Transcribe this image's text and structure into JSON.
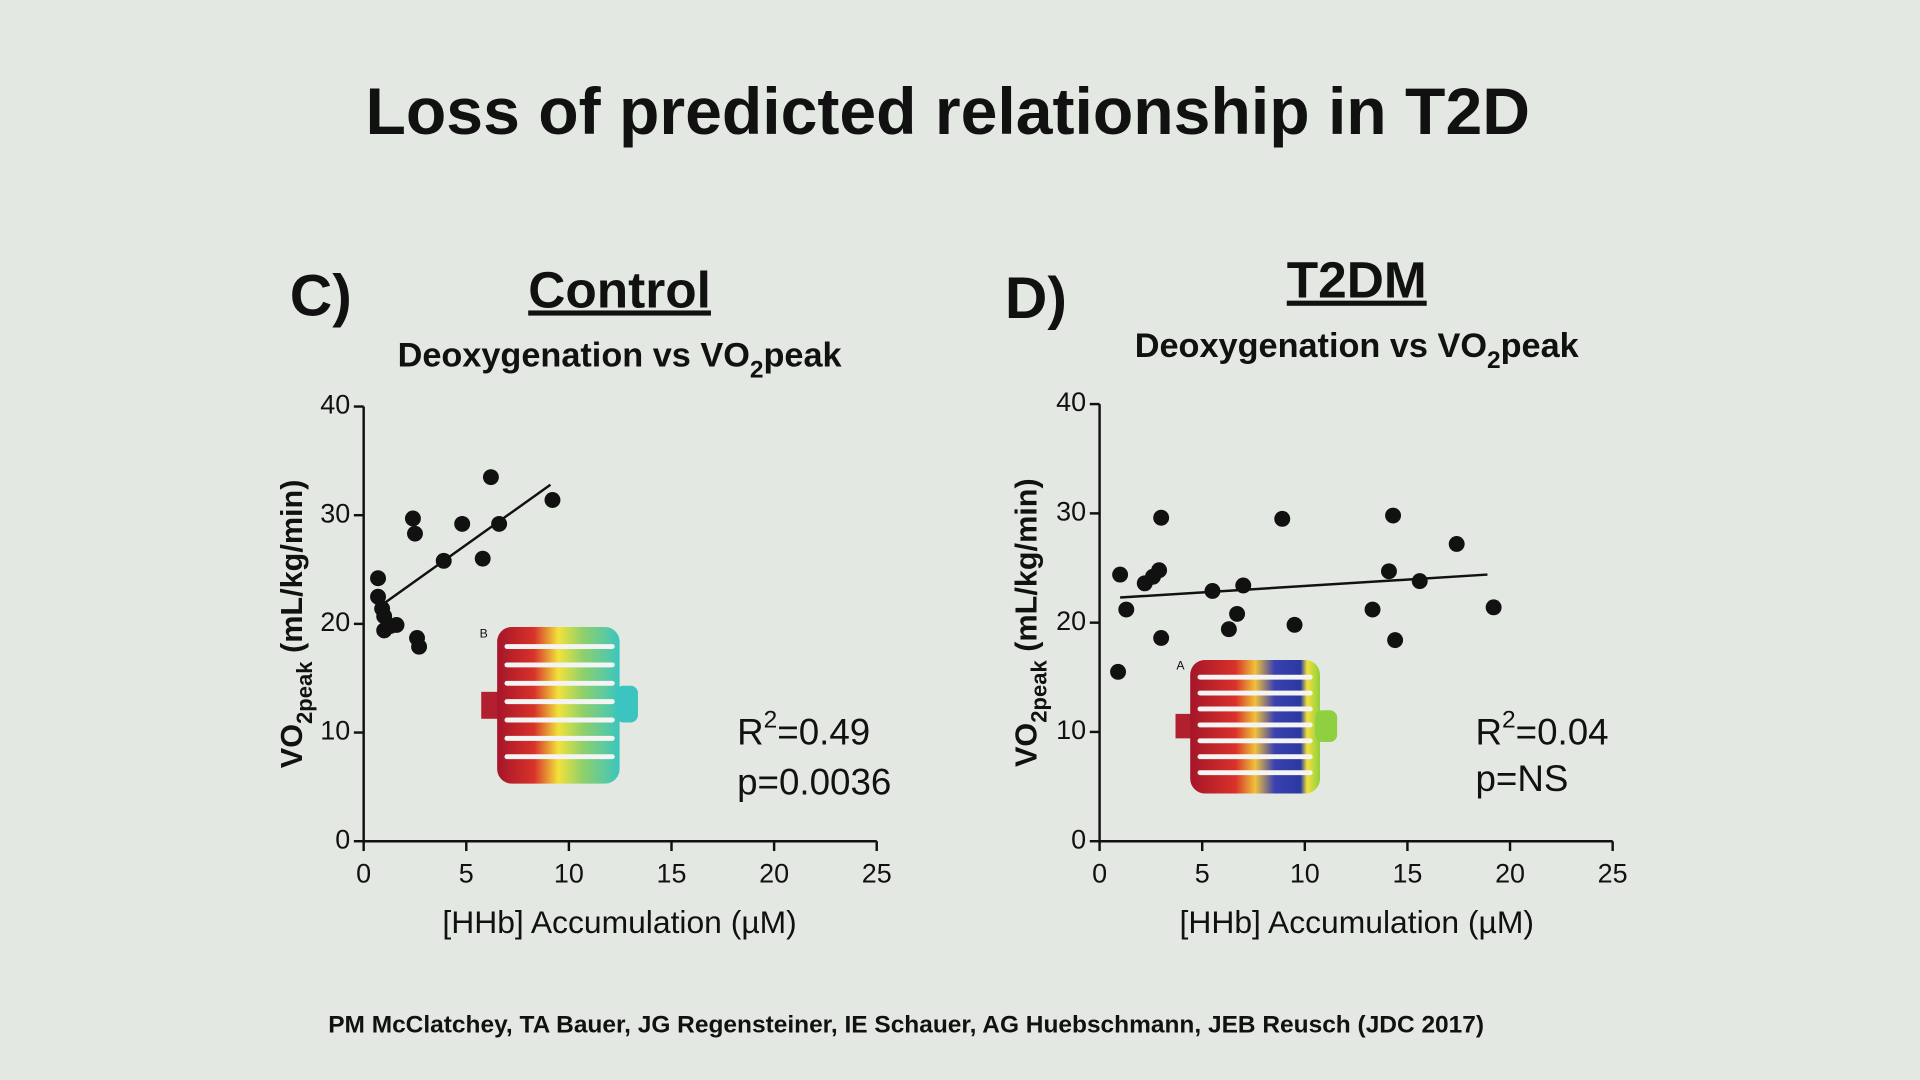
{
  "title": "Loss of predicted relationship in T2D",
  "citation": "PM McClatchey, TA Bauer, JG Regensteiner, IE Schauer, AG Huebschmann, JEB Reusch  (JDC 2017)",
  "chart_data": [
    {
      "type": "scatter",
      "panel": "C)",
      "title": "Control",
      "subtitle": [
        "Deoxygenation vs VO",
        "2",
        "peak"
      ],
      "x_label": "[HHb] Accumulation (µM)",
      "y_label": [
        "VO",
        "2peak",
        " (mL/kg/min)"
      ],
      "annotations": [
        [
          "R",
          "2",
          "=0.49"
        ],
        "p=0.0036"
      ],
      "inset_label": "B",
      "color": "#111111",
      "x": [
        0.7,
        0.7,
        0.9,
        1.0,
        1.0,
        1.3,
        1.6,
        2.4,
        2.5,
        2.6,
        2.7,
        3.9,
        4.8,
        5.8,
        6.2,
        6.6,
        9.2
      ],
      "values": [
        24.2,
        22.5,
        21.4,
        20.7,
        19.4,
        19.8,
        19.9,
        29.7,
        28.3,
        18.7,
        17.9,
        25.8,
        29.2,
        26.0,
        33.5,
        29.2,
        31.4
      ],
      "trendline": {
        "x": [
          1.0,
          9.1
        ],
        "y": [
          21.9,
          32.8
        ]
      },
      "xlim": [
        0,
        25
      ],
      "xticks": [
        0,
        5,
        10,
        15,
        20,
        25
      ],
      "ylim": [
        0,
        40
      ],
      "yticks": [
        0,
        10,
        20,
        30,
        40
      ]
    },
    {
      "type": "scatter",
      "panel": "D)",
      "title": "T2DM",
      "subtitle": [
        "Deoxygenation vs VO",
        "2",
        "peak"
      ],
      "x_label": "[HHb] Accumulation (µM)",
      "y_label": [
        "VO",
        "2peak",
        " (mL/kg/min)"
      ],
      "annotations": [
        [
          "R",
          "2",
          "=0.04"
        ],
        "p=NS"
      ],
      "inset_label": "A",
      "color": "#111111",
      "x": [
        1.0,
        0.9,
        1.3,
        2.2,
        2.6,
        2.9,
        3.0,
        3.0,
        5.5,
        6.3,
        6.7,
        7.0,
        8.9,
        9.5,
        13.3,
        14.1,
        14.3,
        14.4,
        15.6,
        17.4,
        19.2
      ],
      "values": [
        24.4,
        15.5,
        21.2,
        23.6,
        24.2,
        24.8,
        29.6,
        18.6,
        22.9,
        19.4,
        20.8,
        23.4,
        29.5,
        19.8,
        21.2,
        24.7,
        29.8,
        18.4,
        23.8,
        27.2,
        21.4
      ],
      "trendline": {
        "x": [
          1.0,
          18.9
        ],
        "y": [
          22.3,
          24.4
        ]
      },
      "xlim": [
        0,
        25
      ],
      "xticks": [
        0,
        5,
        10,
        15,
        20,
        25
      ],
      "ylim": [
        0,
        40
      ],
      "yticks": [
        0,
        10,
        20,
        30,
        40
      ]
    }
  ]
}
